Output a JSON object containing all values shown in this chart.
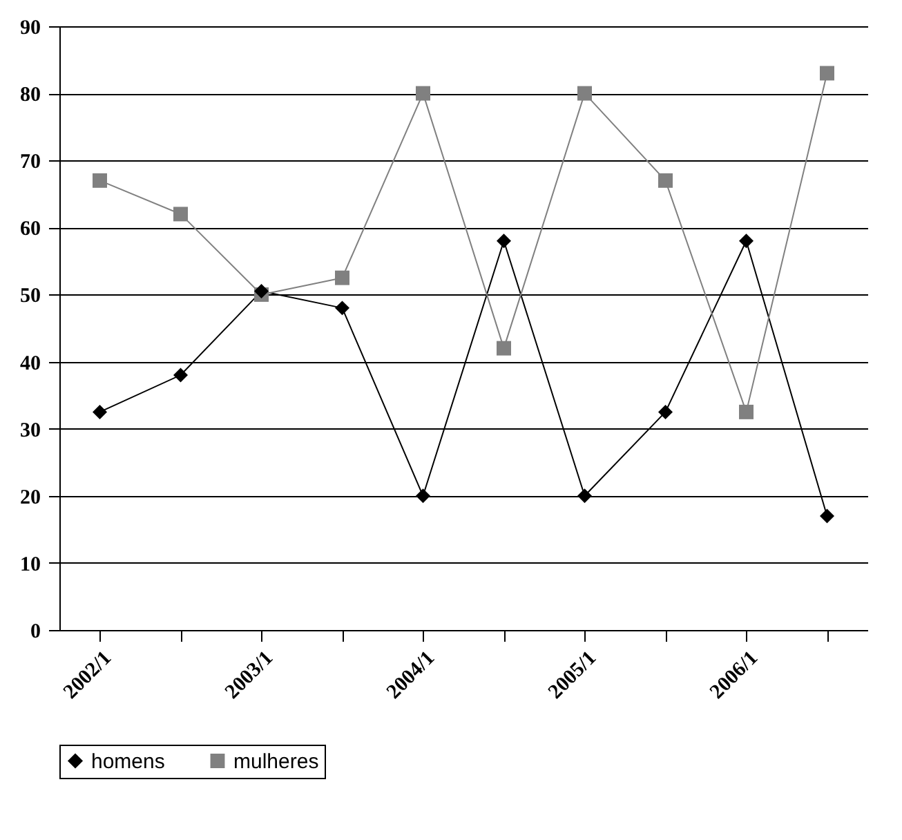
{
  "chart_data": {
    "type": "line",
    "categories": [
      "2002/1",
      null,
      "2003/1",
      null,
      "2004/1",
      null,
      "2005/1",
      null,
      "2006/1",
      null
    ],
    "series": [
      {
        "name": "homens",
        "color": "#000000",
        "marker": "diamond",
        "values": [
          32.5,
          38,
          50.5,
          48,
          20,
          58,
          20,
          32.5,
          58,
          17
        ]
      },
      {
        "name": "mulheres",
        "color": "#808080",
        "marker": "square",
        "values": [
          67,
          62,
          50,
          52.5,
          80,
          42,
          80,
          67,
          32.5,
          83
        ]
      }
    ],
    "ylim": [
      0,
      90
    ],
    "yticks": [
      0,
      10,
      20,
      30,
      40,
      50,
      60,
      70,
      80,
      90
    ],
    "grid": "y",
    "legend": "bottom"
  }
}
